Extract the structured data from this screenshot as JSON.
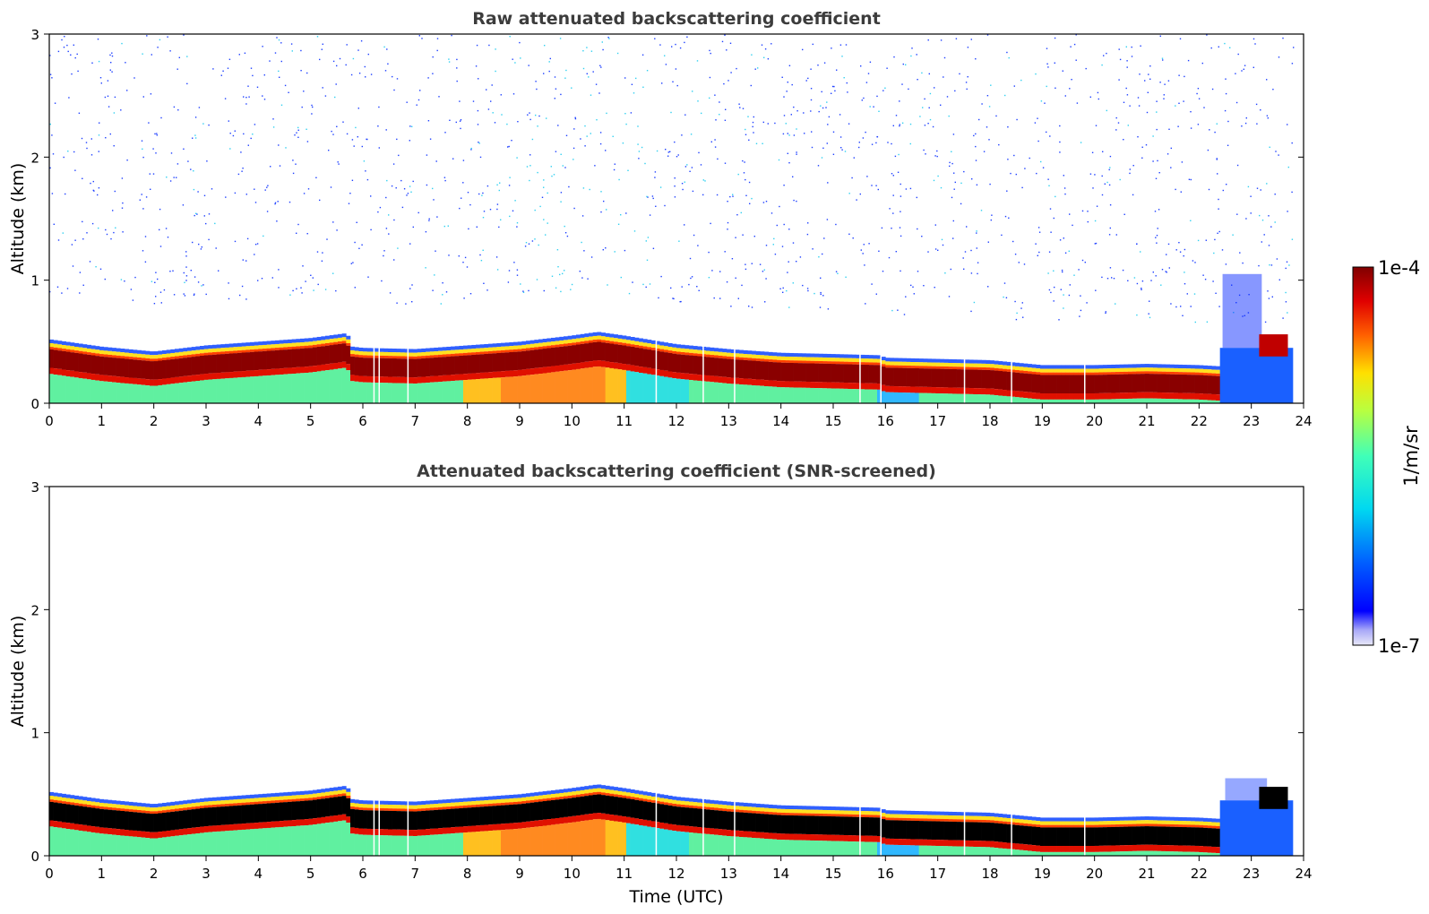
{
  "chart_data": {
    "type": "heatmap",
    "colormap": "jet",
    "colorbar": {
      "label": "1/m/sr",
      "min_label": "1e-7",
      "max_label": "1e-4",
      "scale": "log",
      "range": [
        1e-07,
        0.0001
      ]
    },
    "x_ticks": [
      "0",
      "1",
      "2",
      "3",
      "4",
      "5",
      "6",
      "7",
      "8",
      "9",
      "10",
      "11",
      "12",
      "13",
      "14",
      "15",
      "16",
      "17",
      "18",
      "19",
      "20",
      "21",
      "22",
      "23",
      "24"
    ],
    "y_ticks": [
      "0",
      "1",
      "2",
      "3"
    ],
    "xlim": [
      0,
      24
    ],
    "ylim": [
      0,
      3
    ],
    "boundary_layer_top_km": {
      "time_utc": [
        0,
        1,
        2,
        3,
        4,
        5,
        5.7,
        5.8,
        6,
        7,
        8,
        9,
        10,
        10.5,
        11,
        12,
        13,
        14,
        15,
        15.9,
        16,
        17,
        18,
        19,
        20,
        21,
        22,
        22.4
      ],
      "top_km": [
        0.52,
        0.46,
        0.42,
        0.47,
        0.5,
        0.53,
        0.57,
        0.46,
        0.45,
        0.44,
        0.47,
        0.5,
        0.55,
        0.58,
        0.55,
        0.48,
        0.44,
        0.41,
        0.4,
        0.39,
        0.37,
        0.36,
        0.35,
        0.31,
        0.31,
        0.32,
        0.31,
        0.3
      ]
    },
    "panels": [
      {
        "title": "Raw attenuated backscattering coefficient",
        "ylabel": "Altitude (km)",
        "xlabel": "",
        "mode": "raw"
      },
      {
        "title": "Attenuated backscattering coefficient (SNR-screened)",
        "ylabel": "Altitude (km)",
        "xlabel": "Time (UTC)",
        "mode": "screened"
      }
    ]
  }
}
